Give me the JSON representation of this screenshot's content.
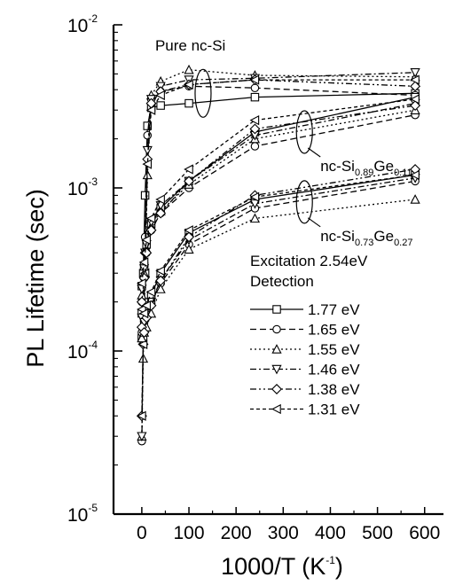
{
  "chart_data": {
    "type": "line",
    "title": "",
    "xlabel": "1000/T",
    "xlabel_unit_base": "K",
    "xlabel_unit_exp": "-1",
    "ylabel": "PL Lifetime (sec)",
    "xlim": [
      -60,
      640
    ],
    "ylim": [
      1e-05,
      0.01
    ],
    "yscale": "log",
    "grid": false,
    "x_ticks": [
      0,
      100,
      200,
      300,
      400,
      500,
      600
    ],
    "x_tick_labels": [
      "0",
      "100",
      "200",
      "300",
      "400",
      "500",
      "600"
    ],
    "y_tick_labels": [
      {
        "base": "10",
        "exp": "-5",
        "value": 1e-05
      },
      {
        "base": "10",
        "exp": "-4",
        "value": 0.0001
      },
      {
        "base": "10",
        "exp": "-3",
        "value": 0.001
      },
      {
        "base": "10",
        "exp": "-2",
        "value": 0.01
      }
    ],
    "legend": {
      "position": "right",
      "heading_line1": "Excitation 2.54eV",
      "heading_line2": "Detection",
      "entries": [
        {
          "label": "1.77 eV",
          "marker": "square",
          "dash": "solid"
        },
        {
          "label": "1.65 eV",
          "marker": "circle",
          "dash": "dash"
        },
        {
          "label": "1.55 eV",
          "marker": "triangle-up",
          "dash": "dot"
        },
        {
          "label": "1.46 eV",
          "marker": "triangle-down",
          "dash": "dashdot"
        },
        {
          "label": "1.38 eV",
          "marker": "diamond",
          "dash": "dashdotdot"
        },
        {
          "label": "1.31 eV",
          "marker": "triangle-left",
          "dash": "shortdash"
        }
      ]
    },
    "annotations": [
      {
        "text": "Pure nc-Si",
        "at_x": 130,
        "at_y": 0.0068
      },
      {
        "base": "nc-Si",
        "sub1": "0.89",
        "mid": "Ge",
        "sub2": "0.11",
        "at_x": 345,
        "at_y": 0.0016
      },
      {
        "base": "nc-Si",
        "sub1": "0.73",
        "mid": "Ge",
        "sub2": "0.27",
        "at_x": 345,
        "at_y": 0.00053
      }
    ],
    "groups": [
      {
        "group": "Pure nc-Si",
        "series": [
          {
            "marker": "square",
            "dash": "solid",
            "points": [
              [
                0,
                0.00012
              ],
              [
                3,
                0.0003
              ],
              [
                7,
                0.0009
              ],
              [
                12,
                0.0024
              ],
              [
                20,
                0.0031
              ],
              [
                40,
                0.0032
              ],
              [
                100,
                0.0033
              ],
              [
                240,
                0.0036
              ],
              [
                580,
                0.0038
              ]
            ]
          },
          {
            "marker": "circle",
            "dash": "dash",
            "points": [
              [
                0,
                2.8e-05
              ],
              [
                3,
                0.00012
              ],
              [
                7,
                0.0005
              ],
              [
                12,
                0.0021
              ],
              [
                20,
                0.0035
              ],
              [
                40,
                0.0039
              ],
              [
                100,
                0.0042
              ],
              [
                240,
                0.0041
              ],
              [
                580,
                0.0037
              ]
            ]
          },
          {
            "marker": "triangle-up",
            "dash": "dot",
            "points": [
              [
                0,
                3e-05
              ],
              [
                3,
                9e-05
              ],
              [
                7,
                0.0003
              ],
              [
                12,
                0.0012
              ],
              [
                20,
                0.0037
              ],
              [
                40,
                0.0045
              ],
              [
                100,
                0.0053
              ],
              [
                240,
                0.0049
              ],
              [
                580,
                0.0048
              ]
            ]
          },
          {
            "marker": "triangle-down",
            "dash": "dashdot",
            "points": [
              [
                0,
                3e-05
              ],
              [
                3,
                0.00013
              ],
              [
                7,
                0.0004
              ],
              [
                12,
                0.0017
              ],
              [
                20,
                0.0035
              ],
              [
                40,
                0.0042
              ],
              [
                100,
                0.0046
              ],
              [
                240,
                0.0047
              ],
              [
                580,
                0.0051
              ]
            ]
          },
          {
            "marker": "diamond",
            "dash": "dashdotdot",
            "points": [
              [
                0,
                4e-05
              ],
              [
                3,
                0.00011
              ],
              [
                7,
                0.0004
              ],
              [
                12,
                0.0015
              ],
              [
                20,
                0.0033
              ],
              [
                40,
                0.0039
              ],
              [
                100,
                0.0043
              ],
              [
                240,
                0.0046
              ],
              [
                580,
                0.0042
              ]
            ]
          },
          {
            "marker": "triangle-left",
            "dash": "shortdash",
            "points": [
              [
                0,
                4e-05
              ],
              [
                3,
                0.00011
              ],
              [
                7,
                0.0003
              ],
              [
                12,
                0.0014
              ],
              [
                20,
                0.003
              ],
              [
                40,
                0.0037
              ],
              [
                100,
                0.0043
              ],
              [
                240,
                0.0046
              ],
              [
                580,
                0.0046
              ]
            ]
          }
        ]
      },
      {
        "group": "nc-Si0.89Ge0.11",
        "series": [
          {
            "marker": "square",
            "dash": "solid",
            "points": [
              [
                0,
                0.00025
              ],
              [
                5,
                0.00033
              ],
              [
                10,
                0.00045
              ],
              [
                20,
                0.0006
              ],
              [
                40,
                0.00075
              ],
              [
                100,
                0.0011
              ],
              [
                240,
                0.0022
              ],
              [
                580,
                0.0036
              ]
            ]
          },
          {
            "marker": "circle",
            "dash": "dash",
            "points": [
              [
                0,
                0.0002
              ],
              [
                5,
                0.00028
              ],
              [
                10,
                0.0004
              ],
              [
                20,
                0.00055
              ],
              [
                40,
                0.0007
              ],
              [
                100,
                0.001
              ],
              [
                240,
                0.0018
              ],
              [
                580,
                0.0028
              ]
            ]
          },
          {
            "marker": "triangle-up",
            "dash": "dot",
            "points": [
              [
                0,
                0.00022
              ],
              [
                5,
                0.0003
              ],
              [
                10,
                0.00042
              ],
              [
                20,
                0.00058
              ],
              [
                40,
                0.00072
              ],
              [
                100,
                0.00105
              ],
              [
                240,
                0.002
              ],
              [
                580,
                0.003
              ]
            ]
          },
          {
            "marker": "triangle-down",
            "dash": "dashdot",
            "points": [
              [
                0,
                0.00024
              ],
              [
                5,
                0.00032
              ],
              [
                10,
                0.00045
              ],
              [
                20,
                0.00062
              ],
              [
                40,
                0.00078
              ],
              [
                100,
                0.0011
              ],
              [
                240,
                0.0021
              ],
              [
                580,
                0.0033
              ]
            ]
          },
          {
            "marker": "diamond",
            "dash": "dashdotdot",
            "points": [
              [
                0,
                0.0002
              ],
              [
                5,
                0.00028
              ],
              [
                10,
                0.0004
              ],
              [
                20,
                0.00055
              ],
              [
                40,
                0.0007
              ],
              [
                100,
                0.0011
              ],
              [
                240,
                0.0023
              ],
              [
                580,
                0.0032
              ]
            ]
          },
          {
            "marker": "triangle-left",
            "dash": "shortdash",
            "points": [
              [
                0,
                0.00026
              ],
              [
                5,
                0.00035
              ],
              [
                10,
                0.00048
              ],
              [
                20,
                0.00065
              ],
              [
                40,
                0.00085
              ],
              [
                100,
                0.0013
              ],
              [
                240,
                0.0026
              ],
              [
                580,
                0.0035
              ]
            ]
          }
        ]
      },
      {
        "group": "nc-Si0.73Ge0.27",
        "series": [
          {
            "marker": "square",
            "dash": "solid",
            "points": [
              [
                0,
                0.00017
              ],
              [
                5,
                0.00016
              ],
              [
                10,
                0.00018
              ],
              [
                20,
                0.00022
              ],
              [
                40,
                0.0003
              ],
              [
                100,
                0.00053
              ],
              [
                240,
                0.00085
              ],
              [
                580,
                0.0012
              ]
            ]
          },
          {
            "marker": "circle",
            "dash": "dash",
            "points": [
              [
                0,
                0.00013
              ],
              [
                5,
                0.00015
              ],
              [
                10,
                0.00017
              ],
              [
                20,
                0.0002
              ],
              [
                40,
                0.00026
              ],
              [
                100,
                0.00045
              ],
              [
                240,
                0.00075
              ],
              [
                580,
                0.0011
              ]
            ]
          },
          {
            "marker": "triangle-up",
            "dash": "dot",
            "points": [
              [
                0,
                0.00012
              ],
              [
                5,
                0.00013
              ],
              [
                10,
                0.00014
              ],
              [
                20,
                0.00017
              ],
              [
                40,
                0.00024
              ],
              [
                100,
                0.00042
              ],
              [
                240,
                0.00065
              ],
              [
                580,
                0.00085
              ]
            ]
          },
          {
            "marker": "triangle-down",
            "dash": "dashdot",
            "points": [
              [
                0,
                0.00016
              ],
              [
                5,
                0.00015
              ],
              [
                10,
                0.00017
              ],
              [
                20,
                0.0002
              ],
              [
                40,
                0.00027
              ],
              [
                100,
                0.00048
              ],
              [
                240,
                0.0008
              ],
              [
                580,
                0.00115
              ]
            ]
          },
          {
            "marker": "diamond",
            "dash": "dashdotdot",
            "points": [
              [
                0,
                0.00014
              ],
              [
                5,
                0.00013
              ],
              [
                10,
                0.00016
              ],
              [
                20,
                0.00019
              ],
              [
                40,
                0.00027
              ],
              [
                100,
                0.0005
              ],
              [
                240,
                0.0009
              ],
              [
                580,
                0.0013
              ]
            ]
          },
          {
            "marker": "triangle-left",
            "dash": "shortdash",
            "points": [
              [
                0,
                0.00018
              ],
              [
                5,
                0.00017
              ],
              [
                10,
                0.00019
              ],
              [
                20,
                0.00023
              ],
              [
                40,
                0.00031
              ],
              [
                100,
                0.00055
              ],
              [
                240,
                0.00088
              ],
              [
                580,
                0.0012
              ]
            ]
          }
        ]
      }
    ]
  }
}
